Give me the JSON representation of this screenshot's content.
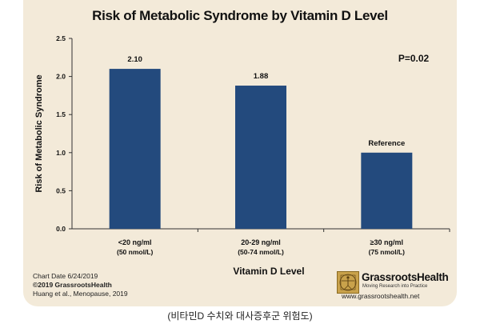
{
  "chart_data": {
    "type": "bar",
    "title": "Risk of Metabolic Syndrome by Vitamin D Level",
    "xlabel": "Vitamin D Level",
    "ylabel": "Risk of Metabolic Syndrome",
    "ylim": [
      0,
      2.5
    ],
    "yticks": [
      "0.0",
      "0.5",
      "1.0",
      "1.5",
      "2.0",
      "2.5"
    ],
    "categories": [
      {
        "line1": "<20 ng/ml",
        "line2": "(50 nmol/L)"
      },
      {
        "line1": "20-29 ng/ml",
        "line2": "(50-74 nmol/L)"
      },
      {
        "line1": "≥30 ng/ml",
        "line2": "(75 nmol/L)"
      }
    ],
    "values": [
      2.1,
      1.88,
      1.0
    ],
    "data_labels": [
      "2.10",
      "1.88",
      "Reference"
    ],
    "annotation": "P=0.02",
    "bar_color": "#234a7d",
    "grid": false
  },
  "footer": {
    "chart_date": "Chart Date 6/24/2019",
    "copyright": "©2019 GrassrootsHealth",
    "source": "Huang et al., Menopause, 2019"
  },
  "logo": {
    "name": "GrassrootsHealth",
    "tagline": "Moving Research into Practice",
    "url": "www.grassrootshealth.net"
  },
  "caption": "(비타민D 수치와 대사증후군 위험도)"
}
